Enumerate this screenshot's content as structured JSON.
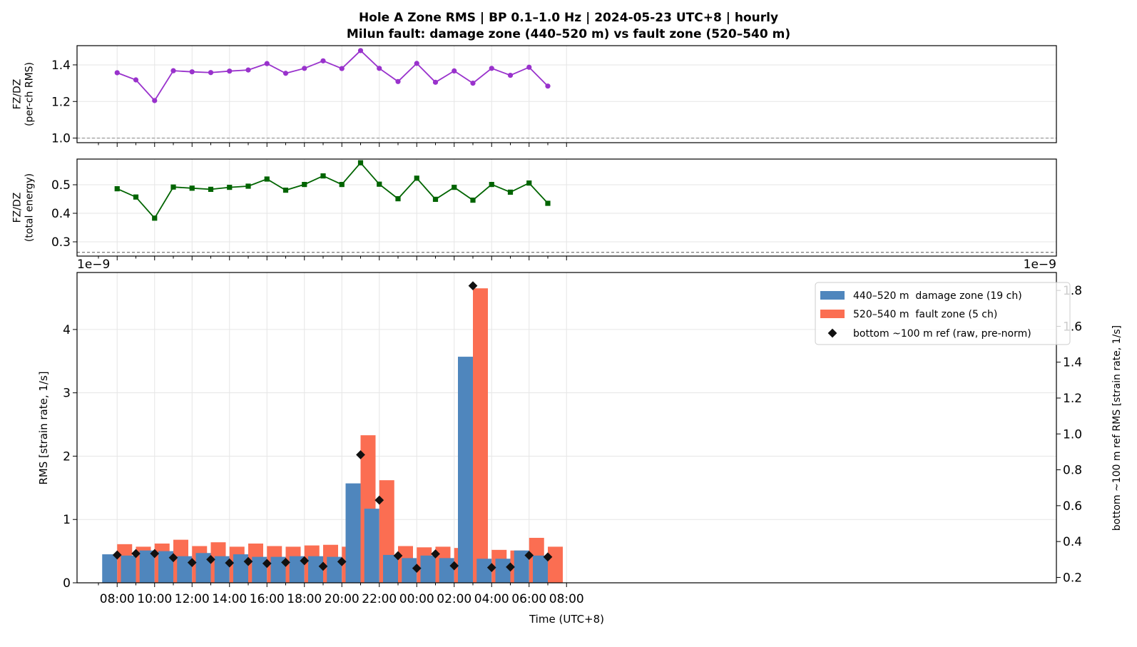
{
  "title": {
    "line1": "Hole A Zone RMS  |  BP 0.1–1.0 Hz  |  2024-05-23 UTC+8  |  hourly",
    "line2": "Milun fault: damage zone (440–520 m) vs fault zone (520–540 m)"
  },
  "colors": {
    "ratio_rms": "#9932cc",
    "ratio_energy": "#006400",
    "damage_zone": "#4f86bd",
    "fault_zone": "#fb6e52",
    "bottom_ref": "#111111",
    "grid": "#e6e6e6"
  },
  "chart_data": [
    {
      "id": "ratio_rms",
      "type": "line",
      "ylabel": "FZ/DZ\n(per-ch RMS)",
      "x_hours": [
        8,
        9,
        10,
        11,
        12,
        13,
        14,
        15,
        16,
        17,
        18,
        19,
        20,
        21,
        22,
        23,
        24,
        25,
        26,
        27,
        28,
        29,
        30,
        31
      ],
      "values": [
        1.357,
        1.318,
        1.205,
        1.368,
        1.362,
        1.358,
        1.366,
        1.372,
        1.407,
        1.354,
        1.381,
        1.422,
        1.38,
        1.478,
        1.381,
        1.309,
        1.408,
        1.305,
        1.367,
        1.3,
        1.381,
        1.343,
        1.387,
        1.284
      ],
      "reference_line": 1.0,
      "ylim": [
        0.975,
        1.505
      ],
      "yticks": [
        "1.0",
        "1.2",
        "1.4"
      ],
      "marker": "circle"
    },
    {
      "id": "ratio_energy",
      "type": "line",
      "ylabel": "FZ/DZ\n(total energy)",
      "x_hours": [
        8,
        9,
        10,
        11,
        12,
        13,
        14,
        15,
        16,
        17,
        18,
        19,
        20,
        21,
        22,
        23,
        24,
        25,
        26,
        27,
        28,
        29,
        30,
        31
      ],
      "values": [
        0.486,
        0.457,
        0.383,
        0.492,
        0.488,
        0.484,
        0.491,
        0.495,
        0.52,
        0.481,
        0.501,
        0.531,
        0.501,
        0.577,
        0.502,
        0.451,
        0.523,
        0.449,
        0.491,
        0.446,
        0.501,
        0.474,
        0.506,
        0.435
      ],
      "reference_line": 0.263,
      "ylim": [
        0.25,
        0.59
      ],
      "yticks": [
        "0.3",
        "0.4",
        "0.5"
      ],
      "marker": "square",
      "offset_label_left": "1e−9",
      "offset_label_right": "1e−9"
    },
    {
      "id": "zone_rms",
      "type": "bar",
      "xlabel": "Time (UTC+8)",
      "ylabel": "RMS  [strain rate, 1/s]",
      "y2label": "bottom ~100 m ref RMS  [strain rate, 1/s]",
      "x_hours": [
        8,
        9,
        10,
        11,
        12,
        13,
        14,
        15,
        16,
        17,
        18,
        19,
        20,
        21,
        22,
        23,
        24,
        25,
        26,
        27,
        28,
        29,
        30,
        31
      ],
      "xticks": [
        "08:00",
        "10:00",
        "12:00",
        "14:00",
        "16:00",
        "18:00",
        "20:00",
        "22:00",
        "00:00",
        "02:00",
        "04:00",
        "06:00",
        "08:00"
      ],
      "ylim": [
        0,
        4.9
      ],
      "yticks": [
        "0",
        "1",
        "2",
        "3",
        "4"
      ],
      "y2lim": [
        0.17,
        1.9
      ],
      "y2ticks": [
        "0.2",
        "0.4",
        "0.6",
        "0.8",
        "1.0",
        "1.2",
        "1.4",
        "1.6",
        "1.8"
      ],
      "legend_position": "top-right",
      "series": [
        {
          "name": "440–520 m  damage zone (19 ch)",
          "kind": "bar",
          "values": [
            0.45,
            0.43,
            0.51,
            0.5,
            0.42,
            0.47,
            0.42,
            0.45,
            0.41,
            0.41,
            0.42,
            0.42,
            0.41,
            1.57,
            1.17,
            0.44,
            0.39,
            0.43,
            0.39,
            3.57,
            0.38,
            0.38,
            0.51,
            0.43
          ]
        },
        {
          "name": "520–540 m  fault zone (5 ch)",
          "kind": "bar",
          "values": [
            0.61,
            0.57,
            0.62,
            0.68,
            0.58,
            0.64,
            0.57,
            0.62,
            0.58,
            0.57,
            0.59,
            0.6,
            0.57,
            2.33,
            1.62,
            0.58,
            0.56,
            0.57,
            0.55,
            4.65,
            0.52,
            0.51,
            0.71,
            0.57
          ]
        },
        {
          "name": "bottom ~100 m ref (raw, pre-norm)",
          "kind": "scatter",
          "axis": "right",
          "values": [
            0.325,
            0.333,
            0.333,
            0.31,
            0.283,
            0.3,
            0.281,
            0.289,
            0.278,
            0.284,
            0.293,
            0.262,
            0.288,
            0.884,
            0.631,
            0.321,
            0.251,
            0.331,
            0.265,
            1.826,
            0.255,
            0.258,
            0.323,
            0.314
          ]
        }
      ]
    }
  ]
}
